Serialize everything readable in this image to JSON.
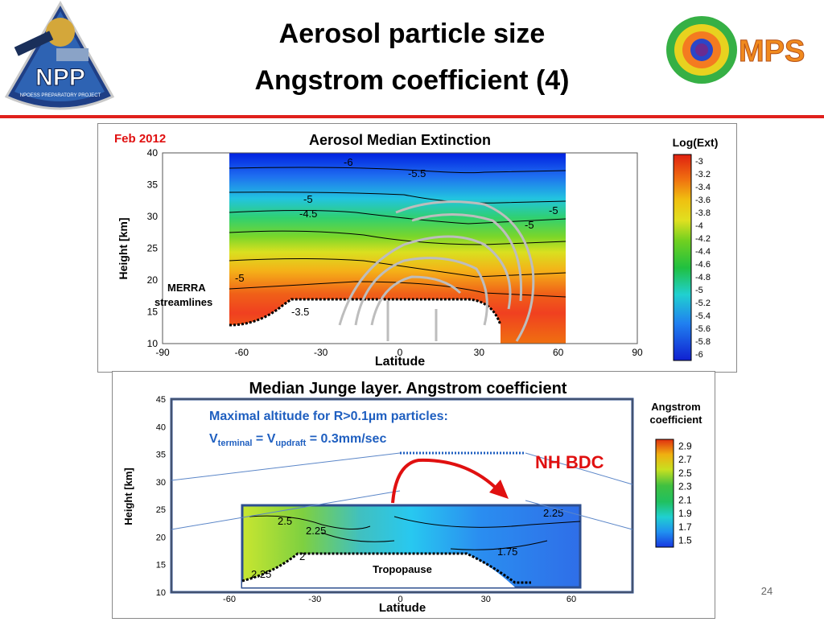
{
  "slide": {
    "title_line1": "Aerosol particle size",
    "title_line2": "Angstrom coefficient (4)",
    "page_number": "24",
    "left_logo_text": "NPP",
    "left_logo_subtext": "NPOESS PREPARATORY PROJECT",
    "right_logo_text": "MPS",
    "accent_color": "#e0201c"
  },
  "top_figure": {
    "date_label": "Feb 2012",
    "title": "Aerosol Median Extinction",
    "xlabel": "Latitude",
    "ylabel": "Height [km]",
    "xticks": [
      "-90",
      "-60",
      "-30",
      "0",
      "30",
      "60",
      "90"
    ],
    "yticks": [
      "10",
      "15",
      "20",
      "25",
      "30",
      "35",
      "40"
    ],
    "streamline_label_1": "MERRA",
    "streamline_label_2": "streamlines",
    "contour_labels": [
      "-6",
      "-5.5",
      "-5",
      "-4.5",
      "-5",
      "-5",
      "-5",
      "-3.5"
    ],
    "colorbar_title": "Log(Ext)",
    "colorbar_ticks": [
      "-3",
      "-3.2",
      "-3.4",
      "-3.6",
      "-3.8",
      "-4",
      "-4.2",
      "-4.4",
      "-4.6",
      "-4.8",
      "-5",
      "-5.2",
      "-5.4",
      "-5.6",
      "-5.8",
      "-6"
    ]
  },
  "bottom_figure": {
    "caption": "Median Junge layer. Angstrom coefficient",
    "xlabel": "Latitude",
    "ylabel": "Height [km]",
    "xticks": [
      "-60",
      "-30",
      "0",
      "30",
      "60"
    ],
    "yticks": [
      "10",
      "15",
      "20",
      "25",
      "30",
      "35",
      "40",
      "45"
    ],
    "annotation_line1": "Maximal altitude for R>0.1µm particles:",
    "annotation_v": "V",
    "annotation_sub_terminal": "terminal",
    "annotation_eq": " = V",
    "annotation_sub_updraft": "updraft",
    "annotation_rest": " = 0.3mm/sec",
    "bdc_label": "NH BDC",
    "tropopause_label": "Tropopause",
    "contour_labels": [
      "2.5",
      "2.25",
      "2",
      "2.25",
      "1.75",
      "2.25"
    ],
    "colorbar_title_1": "Angstrom",
    "colorbar_title_2": "coefficient",
    "colorbar_ticks": [
      "2.9",
      "2.7",
      "2.5",
      "2.3",
      "2.1",
      "1.9",
      "1.7",
      "1.5"
    ]
  }
}
